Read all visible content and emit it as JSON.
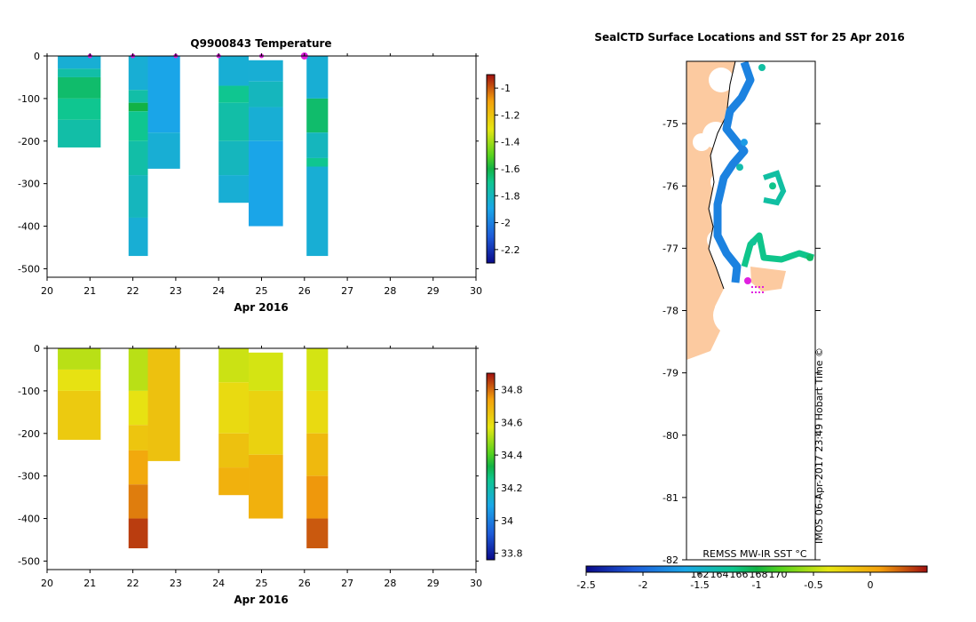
{
  "chart_data": [
    {
      "type": "heatmap",
      "title": "Q9900843  Temperature",
      "xlabel": "Apr 2016",
      "xlim": [
        20,
        30
      ],
      "ylim": [
        -520,
        0
      ],
      "x_ticks": [
        "20",
        "21",
        "22",
        "23",
        "24",
        "25",
        "26",
        "27",
        "28",
        "29",
        "30"
      ],
      "y_ticks": [
        "0",
        "-100",
        "-200",
        "-300",
        "-400",
        "-500"
      ],
      "colorbar": {
        "min": -2.3,
        "max": -0.9,
        "ticks": [
          "-1",
          "-1.2",
          "-1.4",
          "-1.6",
          "-1.8",
          "-2",
          "-2.2"
        ]
      },
      "profile_markers": [
        21.0,
        22.0,
        23.0,
        24.0,
        25.0,
        26.0
      ],
      "profiles": [
        {
          "x0": 20.25,
          "x1": 21.25,
          "depth": 215,
          "bands": [
            [
              0,
              30,
              -1.85
            ],
            [
              30,
              50,
              -1.75
            ],
            [
              50,
              100,
              -1.65
            ],
            [
              100,
              150,
              -1.7
            ],
            [
              150,
              215,
              -1.75
            ]
          ]
        },
        {
          "x0": 21.9,
          "x1": 22.35,
          "depth": 470,
          "bands": [
            [
              0,
              80,
              -1.85
            ],
            [
              80,
              110,
              -1.75
            ],
            [
              110,
              130,
              -1.6
            ],
            [
              130,
              200,
              -1.7
            ],
            [
              200,
              280,
              -1.75
            ],
            [
              280,
              380,
              -1.8
            ],
            [
              380,
              470,
              -1.85
            ]
          ]
        },
        {
          "x0": 22.35,
          "x1": 23.1,
          "depth": 265,
          "bands": [
            [
              0,
              180,
              -1.9
            ],
            [
              180,
              265,
              -1.85
            ]
          ]
        },
        {
          "x0": 24.0,
          "x1": 24.7,
          "depth": 345,
          "bands": [
            [
              0,
              70,
              -1.85
            ],
            [
              70,
              110,
              -1.7
            ],
            [
              110,
              200,
              -1.75
            ],
            [
              200,
              280,
              -1.8
            ],
            [
              280,
              345,
              -1.85
            ]
          ]
        },
        {
          "x0": 24.7,
          "x1": 25.5,
          "depth": 400,
          "bands": [
            [
              10,
              60,
              -1.85
            ],
            [
              60,
              120,
              -1.8
            ],
            [
              120,
              200,
              -1.85
            ],
            [
              200,
              400,
              -1.9
            ]
          ]
        },
        {
          "x0": 26.05,
          "x1": 26.55,
          "depth": 470,
          "bands": [
            [
              0,
              100,
              -1.85
            ],
            [
              100,
              180,
              -1.65
            ],
            [
              180,
              240,
              -1.8
            ],
            [
              240,
              260,
              -1.7
            ],
            [
              260,
              470,
              -1.85
            ]
          ]
        }
      ]
    },
    {
      "type": "heatmap",
      "title": "",
      "xlabel": "Apr 2016",
      "xlim": [
        20,
        30
      ],
      "ylim": [
        -520,
        0
      ],
      "x_ticks": [
        "20",
        "21",
        "22",
        "23",
        "24",
        "25",
        "26",
        "27",
        "28",
        "29",
        "30"
      ],
      "y_ticks": [
        "0",
        "-100",
        "-200",
        "-300",
        "-400",
        "-500"
      ],
      "colorbar": {
        "min": 33.76,
        "max": 34.9,
        "ticks": [
          "34.8",
          "34.6",
          "34.4",
          "34.2",
          "34",
          "33.8"
        ]
      },
      "profiles": [
        {
          "x0": 20.25,
          "x1": 21.25,
          "depth": 215,
          "bands": [
            [
              0,
              50,
              34.52
            ],
            [
              50,
              100,
              34.58
            ],
            [
              100,
              215,
              34.64
            ]
          ]
        },
        {
          "x0": 21.9,
          "x1": 22.35,
          "depth": 470,
          "bands": [
            [
              0,
              100,
              34.52
            ],
            [
              100,
              180,
              34.58
            ],
            [
              180,
              240,
              34.65
            ],
            [
              240,
              320,
              34.72
            ],
            [
              320,
              400,
              34.78
            ],
            [
              400,
              470,
              34.85
            ]
          ]
        },
        {
          "x0": 22.35,
          "x1": 23.1,
          "depth": 265,
          "bands": [
            [
              0,
              265,
              34.66
            ]
          ]
        },
        {
          "x0": 24.0,
          "x1": 24.7,
          "depth": 345,
          "bands": [
            [
              0,
              80,
              34.54
            ],
            [
              80,
              200,
              34.6
            ],
            [
              200,
              280,
              34.66
            ],
            [
              280,
              345,
              34.7
            ]
          ]
        },
        {
          "x0": 24.7,
          "x1": 25.5,
          "depth": 400,
          "bands": [
            [
              10,
              100,
              34.55
            ],
            [
              100,
              250,
              34.62
            ],
            [
              250,
              400,
              34.7
            ]
          ]
        },
        {
          "x0": 26.05,
          "x1": 26.55,
          "depth": 470,
          "bands": [
            [
              0,
              100,
              34.55
            ],
            [
              100,
              200,
              34.6
            ],
            [
              200,
              300,
              34.68
            ],
            [
              300,
              400,
              34.75
            ],
            [
              400,
              470,
              34.82
            ]
          ]
        }
      ]
    },
    {
      "type": "map",
      "title": "SealCTD Surface Locations and SST for 25 Apr 2016",
      "ylim": [
        -82,
        -74
      ],
      "y_ticks": [
        "-75",
        "-76",
        "-77",
        "-78",
        "-79",
        "-80",
        "-81",
        "-82"
      ],
      "colorbar": {
        "min": -2.5,
        "max": 0.5,
        "ticks": [
          "-2.5",
          "-2",
          "-1.5",
          "-1",
          "-0.5",
          "0"
        ]
      },
      "inset_labels": [
        "162",
        "164",
        "166",
        "168",
        "170"
      ],
      "source_label": "REMSS MW-IR SST °C",
      "credit": "IMOS 06-Apr-2017 23:49 Hobart Time ©",
      "sst_samples": [
        {
          "lat": -74.1,
          "v": -1.3
        },
        {
          "lat": -75.3,
          "v": -1.7
        },
        {
          "lat": -75.7,
          "v": -1.35
        },
        {
          "lat": -76.0,
          "v": -1.2
        },
        {
          "lat": -76.9,
          "v": -1.25
        },
        {
          "lat": -77.15,
          "v": -1.1
        }
      ]
    }
  ]
}
